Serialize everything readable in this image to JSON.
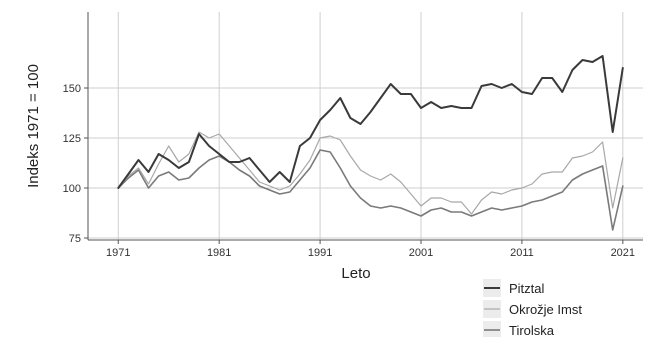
{
  "chart_data": {
    "type": "line",
    "title": "",
    "xlabel": "Leto",
    "ylabel": "Indeks 1971 = 100",
    "xlim": [
      1968,
      2023
    ],
    "ylim": [
      74,
      188
    ],
    "x_ticks": [
      1971,
      1981,
      1991,
      2001,
      2011,
      2021
    ],
    "y_ticks": [
      75,
      100,
      125,
      150
    ],
    "grid": true,
    "legend_position": "bottom-right",
    "x": [
      1971,
      1972,
      1973,
      1974,
      1975,
      1976,
      1977,
      1978,
      1979,
      1980,
      1981,
      1982,
      1983,
      1984,
      1985,
      1986,
      1987,
      1988,
      1989,
      1990,
      1991,
      1992,
      1993,
      1994,
      1995,
      1996,
      1997,
      1998,
      1999,
      2000,
      2001,
      2002,
      2003,
      2004,
      2005,
      2006,
      2007,
      2008,
      2009,
      2010,
      2011,
      2012,
      2013,
      2014,
      2015,
      2016,
      2017,
      2018,
      2019,
      2020,
      2021
    ],
    "series": [
      {
        "name": "Pitztal",
        "color": "#3a3a3a",
        "values": [
          100,
          107,
          114,
          108,
          117,
          114,
          110,
          113,
          127,
          121,
          117,
          113,
          113,
          115,
          109,
          103,
          108,
          103,
          121,
          125,
          134,
          139,
          145,
          135,
          132,
          138,
          145,
          152,
          147,
          147,
          140,
          143,
          140,
          141,
          140,
          140,
          151,
          152,
          150,
          152,
          148,
          147,
          155,
          155,
          148,
          159,
          164,
          163,
          166,
          128,
          160
        ]
      },
      {
        "name": "Okrožje Imst",
        "color": "#a8a8a8",
        "values": [
          100,
          106,
          110,
          102,
          112,
          121,
          113,
          117,
          128,
          125,
          127,
          121,
          115,
          109,
          103,
          101,
          99,
          101,
          107,
          114,
          125,
          126,
          124,
          116,
          109,
          106,
          104,
          107,
          103,
          97,
          91,
          95,
          95,
          93,
          93,
          87,
          94,
          98,
          97,
          99,
          100,
          102,
          107,
          108,
          108,
          115,
          116,
          118,
          123,
          90,
          115
        ]
      },
      {
        "name": "Tirolska",
        "color": "#7a7a7a",
        "values": [
          100,
          105,
          109,
          100,
          106,
          108,
          104,
          105,
          110,
          114,
          116,
          113,
          109,
          106,
          101,
          99,
          97,
          98,
          104,
          110,
          119,
          118,
          110,
          101,
          95,
          91,
          90,
          91,
          90,
          88,
          86,
          89,
          90,
          88,
          88,
          86,
          88,
          90,
          89,
          90,
          91,
          93,
          94,
          96,
          98,
          104,
          107,
          109,
          111,
          79,
          101
        ]
      }
    ]
  }
}
